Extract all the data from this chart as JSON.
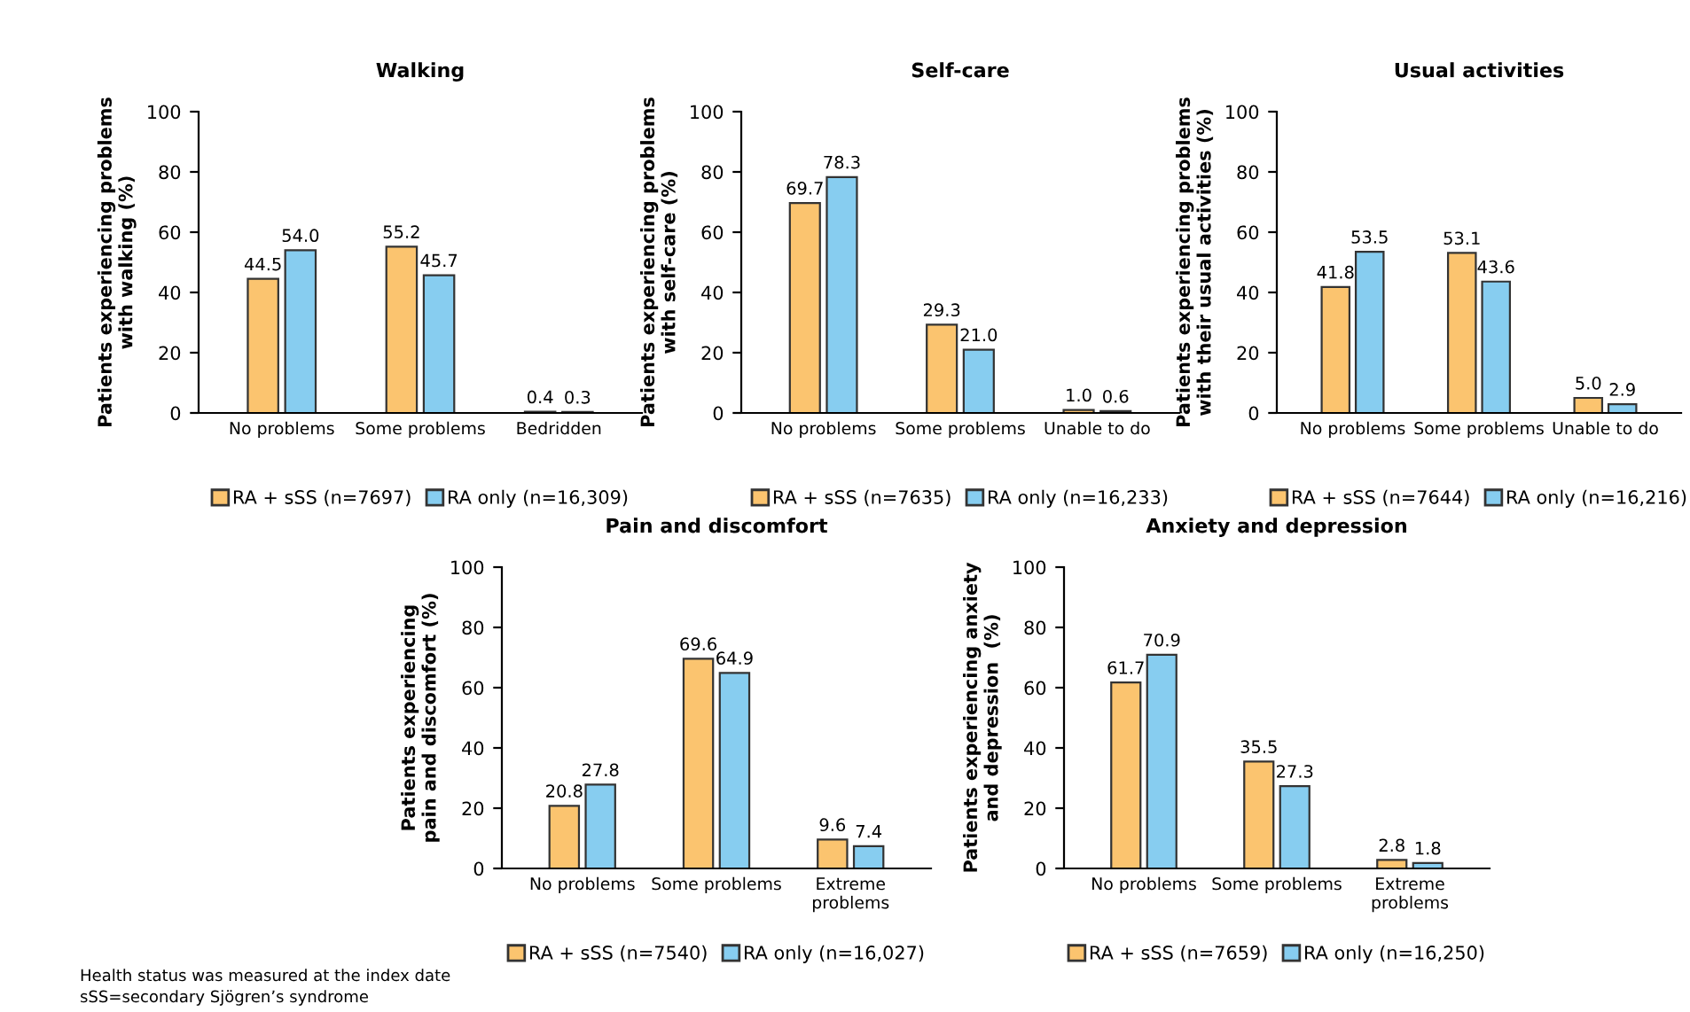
{
  "chart_data": [
    {
      "type": "bar",
      "title": "Walking",
      "ylabel": "Patients experiencing problems\nwith walking (%)",
      "categories": [
        "No problems",
        "Some problems",
        "Bedridden"
      ],
      "series": [
        {
          "name": "RA + sSS (n=7697)",
          "color": "#fbc46f",
          "values": [
            44.5,
            55.2,
            0.4
          ],
          "value_labels": [
            "44.5",
            "55.2",
            "0.4"
          ]
        },
        {
          "name": "RA only (n=16,309)",
          "color": "#87cdf0",
          "values": [
            54,
            45.7,
            0.3
          ],
          "value_labels": [
            "54.0",
            "45.7",
            "0.3"
          ]
        }
      ],
      "ylim": [
        0,
        100
      ],
      "yticks": [
        0,
        20,
        40,
        60,
        80,
        100
      ],
      "legend": "bottom",
      "grid": false
    },
    {
      "type": "bar",
      "title": "Self-care",
      "ylabel": "Patients experiencing problems\nwith self-care (%)",
      "categories": [
        "No problems",
        "Some problems",
        "Unable to do"
      ],
      "series": [
        {
          "name": "RA + sSS (n=7635)",
          "color": "#fbc46f",
          "values": [
            69.7,
            29.3,
            1
          ],
          "value_labels": [
            "69.7",
            "29.3",
            "1.0"
          ]
        },
        {
          "name": "RA only (n=16,233)",
          "color": "#87cdf0",
          "values": [
            78.3,
            21,
            0.6
          ],
          "value_labels": [
            "78.3",
            "21.0",
            "0.6"
          ]
        }
      ],
      "ylim": [
        0,
        100
      ],
      "yticks": [
        0,
        20,
        40,
        60,
        80,
        100
      ],
      "legend": "bottom",
      "grid": false
    },
    {
      "type": "bar",
      "title": "Usual activities",
      "ylabel": "Patients experiencing problems\nwith their usual activities (%)",
      "categories": [
        "No problems",
        "Some problems",
        "Unable to do"
      ],
      "series": [
        {
          "name": "RA + sSS (n=7644)",
          "color": "#fbc46f",
          "values": [
            41.8,
            53.1,
            5
          ],
          "value_labels": [
            "41.8",
            "53.1",
            "5.0"
          ]
        },
        {
          "name": "RA only (n=16,216)",
          "color": "#87cdf0",
          "values": [
            53.5,
            43.6,
            2.9
          ],
          "value_labels": [
            "53.5",
            "43.6",
            "2.9"
          ]
        }
      ],
      "ylim": [
        0,
        100
      ],
      "yticks": [
        0,
        20,
        40,
        60,
        80,
        100
      ],
      "legend": "bottom",
      "grid": false
    },
    {
      "type": "bar",
      "title": "Pain and discomfort",
      "ylabel": "Patients experiencing\npain and discomfort (%)",
      "categories": [
        "No problems",
        "Some problems",
        "Extreme\nproblems"
      ],
      "series": [
        {
          "name": "RA + sSS (n=7540)",
          "color": "#fbc46f",
          "values": [
            20.8,
            69.6,
            9.6
          ],
          "value_labels": [
            "20.8",
            "69.6",
            "9.6"
          ]
        },
        {
          "name": "RA only (n=16,027)",
          "color": "#87cdf0",
          "values": [
            27.8,
            64.9,
            7.4
          ],
          "value_labels": [
            "27.8",
            "64.9",
            "7.4"
          ]
        }
      ],
      "ylim": [
        0,
        100
      ],
      "yticks": [
        0,
        20,
        40,
        60,
        80,
        100
      ],
      "legend": "bottom",
      "grid": false,
      "annotations": [
        "Health status was measured at the index date",
        "sSS=secondary Sjögren’s syndrome"
      ]
    },
    {
      "type": "bar",
      "title": "Anxiety and depression",
      "ylabel": "Patients experiencing anxiety\nand depression  (%)",
      "categories": [
        "No problems",
        "Some problems",
        "Extreme\nproblems"
      ],
      "series": [
        {
          "name": "RA + sSS (n=7659)",
          "color": "#fbc46f",
          "values": [
            61.7,
            35.5,
            2.8
          ],
          "value_labels": [
            "61.7",
            "35.5",
            "2.8"
          ]
        },
        {
          "name": "RA only (n=16,250)",
          "color": "#87cdf0",
          "values": [
            70.9,
            27.3,
            1.8
          ],
          "value_labels": [
            "70.9",
            "27.3",
            "1.8"
          ]
        }
      ],
      "ylim": [
        0,
        100
      ],
      "yticks": [
        0,
        20,
        40,
        60,
        80,
        100
      ],
      "legend": "bottom",
      "grid": false
    }
  ]
}
